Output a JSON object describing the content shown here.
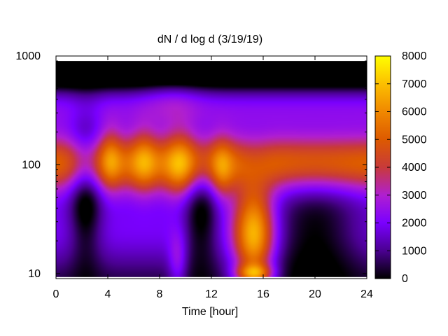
{
  "chart_data": {
    "type": "heatmap",
    "title": "dN / d log d (3/19/19)",
    "xlabel": "Time [hour]",
    "ylabel": "",
    "x_range": [
      0,
      24
    ],
    "y_range": [
      9,
      1000
    ],
    "y_scale": "log",
    "x_ticks": [
      "0",
      "4",
      "8",
      "12",
      "16",
      "20",
      "24"
    ],
    "y_ticks": [
      "1000",
      "100",
      "10"
    ],
    "colorbar": {
      "range": [
        0,
        8000
      ],
      "ticks": [
        "8000",
        "7000",
        "6000",
        "5000",
        "4000",
        "3000",
        "2000",
        "1000",
        "0"
      ],
      "palette": "gnuplot (black-purple-red-orange-yellow)"
    },
    "grid": false,
    "data_extent": {
      "x": [
        0,
        24
      ],
      "y": [
        9.3,
        900
      ]
    },
    "features": [
      {
        "label": "main mode band",
        "x_range": [
          0,
          24
        ],
        "y_center": 100,
        "peak_value": 5000
      },
      {
        "label": "peak",
        "x": 4.2,
        "y": 115,
        "value": 6200
      },
      {
        "label": "peak",
        "x": 6.8,
        "y": 110,
        "value": 6300
      },
      {
        "label": "peak",
        "x": 9.6,
        "y": 100,
        "value": 6800
      },
      {
        "label": "peak",
        "x": 12.8,
        "y": 90,
        "value": 6400
      },
      {
        "label": "nucleation burst",
        "x_range": [
          14,
          16.5
        ],
        "y_range": [
          9.3,
          14
        ],
        "value": 7000
      }
    ]
  }
}
